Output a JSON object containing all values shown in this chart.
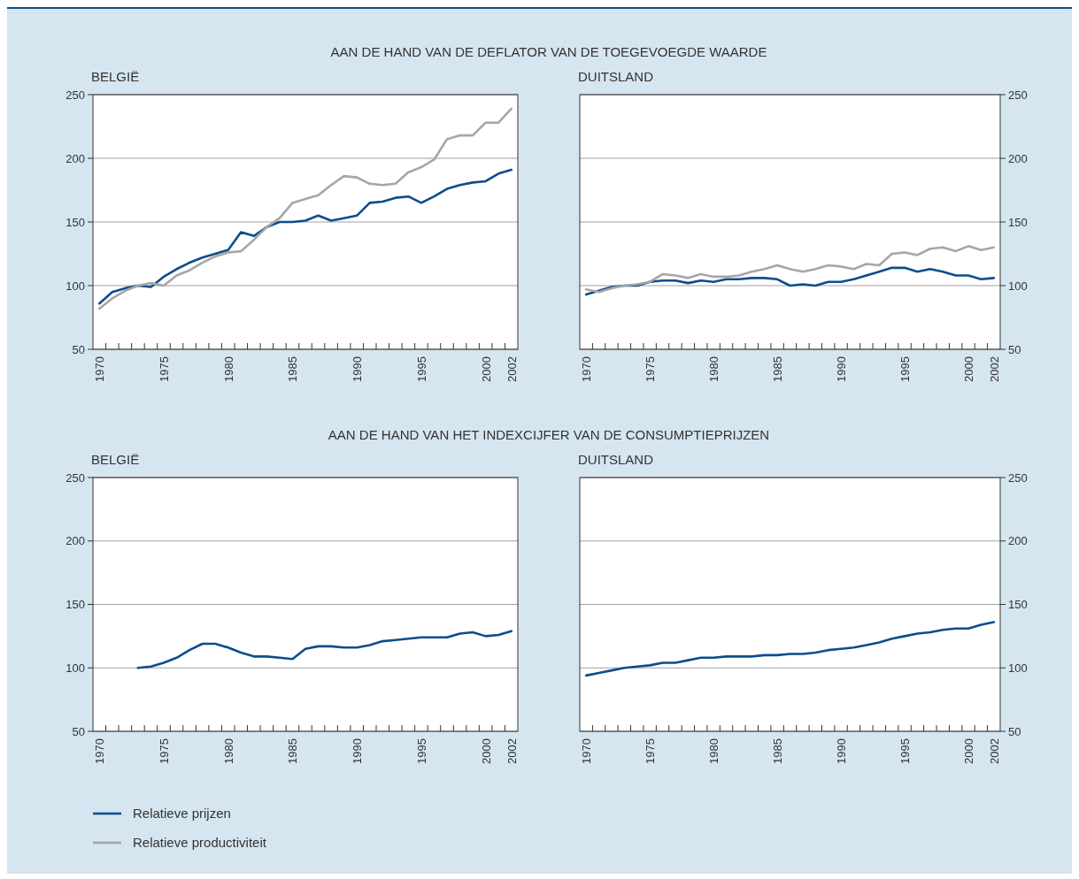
{
  "chart_data": [
    {
      "type": "line",
      "title": "AAN DE HAND VAN DE DEFLATOR VAN DE TOEGEVOEGDE WAARDE",
      "subtitle": "BELGIË",
      "categories": [
        "1970",
        null,
        null,
        null,
        null,
        "1975",
        null,
        null,
        null,
        null,
        "1980",
        null,
        null,
        null,
        null,
        "1985",
        null,
        null,
        null,
        null,
        "1990",
        null,
        null,
        null,
        null,
        "1995",
        null,
        null,
        null,
        null,
        "2000",
        null,
        "2002"
      ],
      "ylim": [
        50,
        250
      ],
      "yticks": [
        50,
        100,
        150,
        200,
        250
      ],
      "grid": "y",
      "legend": "bottom",
      "series": [
        {
          "name": "Relatieve prijzen",
          "color": "#0b4d8c",
          "values": [
            86,
            95,
            98,
            100,
            99,
            107,
            113,
            118,
            122,
            125,
            128,
            142,
            139,
            146,
            150,
            150,
            151,
            155,
            151,
            153,
            155,
            165,
            166,
            169,
            170,
            165,
            170,
            176,
            179,
            181,
            182,
            188,
            191
          ]
        },
        {
          "name": "Relatieve productiviteit",
          "color": "#a6a6a6",
          "values": [
            82,
            90,
            96,
            100,
            102,
            100,
            108,
            112,
            118,
            123,
            126,
            127,
            136,
            146,
            153,
            165,
            168,
            171,
            179,
            186,
            185,
            180,
            179,
            180,
            189,
            193,
            199,
            215,
            218,
            218,
            228,
            228,
            239
          ]
        }
      ]
    },
    {
      "type": "line",
      "subtitle": "DUITSLAND",
      "categories": [
        "1970",
        null,
        null,
        null,
        null,
        "1975",
        null,
        null,
        null,
        null,
        "1980",
        null,
        null,
        null,
        null,
        "1985",
        null,
        null,
        null,
        null,
        "1990",
        null,
        null,
        null,
        null,
        "1995",
        null,
        null,
        null,
        null,
        "2000",
        null,
        "2002"
      ],
      "ylim": [
        50,
        250
      ],
      "yticks": [
        50,
        100,
        150,
        200,
        250
      ],
      "grid": "y",
      "series": [
        {
          "color": "#0b4d8c",
          "values": [
            93,
            96,
            99,
            100,
            100,
            103,
            104,
            104,
            102,
            104,
            103,
            105,
            105,
            106,
            106,
            105,
            100,
            101,
            100,
            103,
            103,
            105,
            108,
            111,
            114,
            114,
            111,
            113,
            111,
            108,
            108,
            105,
            106
          ]
        },
        {
          "color": "#a6a6a6",
          "values": [
            97,
            95,
            98,
            100,
            101,
            103,
            109,
            108,
            106,
            109,
            107,
            107,
            108,
            111,
            113,
            116,
            113,
            111,
            113,
            116,
            115,
            113,
            117,
            116,
            125,
            126,
            124,
            129,
            130,
            127,
            131,
            128,
            130
          ]
        }
      ]
    },
    {
      "type": "line",
      "title": "AAN DE HAND VAN HET INDEXCIJFER VAN DE CONSUMPTIEPRIJZEN",
      "subtitle": "BELGIË",
      "categories": [
        "1970",
        null,
        null,
        null,
        null,
        "1975",
        null,
        null,
        null,
        null,
        "1980",
        null,
        null,
        null,
        null,
        "1985",
        null,
        null,
        null,
        null,
        "1990",
        null,
        null,
        null,
        null,
        "1995",
        null,
        null,
        null,
        null,
        "2000",
        null,
        "2002"
      ],
      "ylim": [
        50,
        250
      ],
      "yticks": [
        50,
        100,
        150,
        200,
        250
      ],
      "grid": "y",
      "series": [
        {
          "color": "#0b4d8c",
          "values": [
            null,
            null,
            null,
            100,
            101,
            104,
            108,
            114,
            119,
            119,
            116,
            112,
            109,
            109,
            108,
            107,
            115,
            117,
            117,
            116,
            116,
            118,
            121,
            122,
            123,
            124,
            124,
            124,
            127,
            128,
            125,
            126,
            129
          ]
        }
      ]
    },
    {
      "type": "line",
      "subtitle": "DUITSLAND",
      "categories": [
        "1970",
        null,
        null,
        null,
        null,
        "1975",
        null,
        null,
        null,
        null,
        "1980",
        null,
        null,
        null,
        null,
        "1985",
        null,
        null,
        null,
        null,
        "1990",
        null,
        null,
        null,
        null,
        "1995",
        null,
        null,
        null,
        null,
        "2000",
        null,
        "2002"
      ],
      "ylim": [
        50,
        250
      ],
      "yticks": [
        50,
        100,
        150,
        200,
        250
      ],
      "grid": "y",
      "series": [
        {
          "color": "#0b4d8c",
          "values": [
            94,
            96,
            98,
            100,
            101,
            102,
            104,
            104,
            106,
            108,
            108,
            109,
            109,
            109,
            110,
            110,
            111,
            111,
            112,
            114,
            115,
            116,
            118,
            120,
            123,
            125,
            127,
            128,
            130,
            131,
            131,
            134,
            136
          ]
        }
      ]
    }
  ]
}
